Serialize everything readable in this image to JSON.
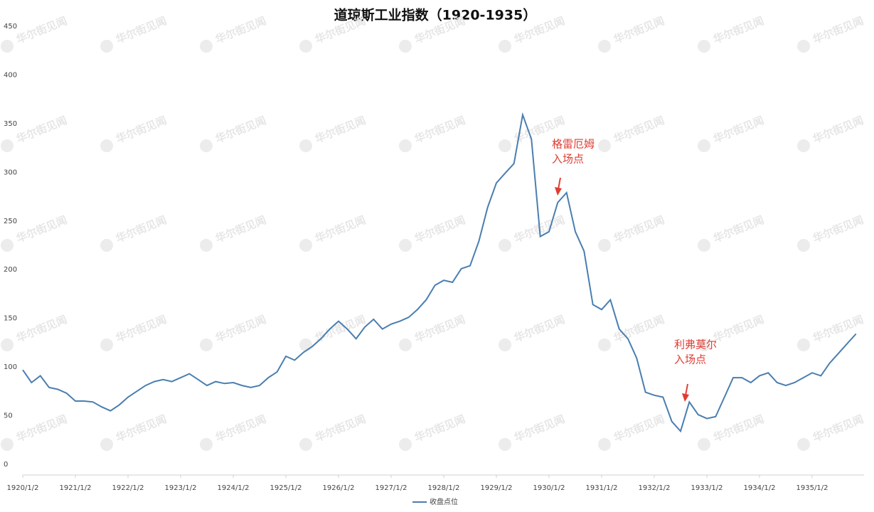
{
  "chart_data": {
    "type": "line",
    "title": "道琼斯工业指数（1920-1935）",
    "categories": [
      "1920/1/2",
      null,
      null,
      null,
      null,
      null,
      "1921/1/2",
      null,
      null,
      null,
      null,
      null,
      "1922/1/2",
      null,
      null,
      null,
      null,
      null,
      "1923/1/2",
      null,
      null,
      null,
      null,
      null,
      "1924/1/2",
      null,
      null,
      null,
      null,
      null,
      "1925/1/2",
      null,
      null,
      null,
      null,
      null,
      "1926/1/2",
      null,
      null,
      null,
      null,
      null,
      "1927/1/2",
      null,
      null,
      null,
      null,
      null,
      "1928/1/2",
      null,
      null,
      null,
      null,
      null,
      "1929/1/2",
      null,
      null,
      null,
      null,
      null,
      "1930/1/2",
      null,
      null,
      null,
      null,
      null,
      "1931/1/2",
      null,
      null,
      null,
      null,
      null,
      "1932/1/2",
      null,
      null,
      null,
      null,
      null,
      "1933/1/2",
      null,
      null,
      null,
      null,
      null,
      "1934/1/2",
      null,
      null,
      null,
      null,
      null,
      "1935/1/2",
      null,
      null,
      null,
      null,
      null
    ],
    "series": [
      {
        "name": "收盘点位",
        "color": "#4a7eb0",
        "values": [
          108,
          95,
          102,
          90,
          88,
          84,
          76,
          76,
          75,
          70,
          66,
          72,
          80,
          86,
          92,
          96,
          98,
          96,
          100,
          104,
          98,
          92,
          96,
          94,
          95,
          92,
          90,
          92,
          100,
          106,
          122,
          118,
          126,
          132,
          140,
          150,
          158,
          150,
          140,
          152,
          160,
          150,
          155,
          158,
          162,
          170,
          180,
          195,
          200,
          198,
          212,
          215,
          240,
          275,
          300,
          310,
          320,
          370,
          345,
          245,
          250,
          280,
          290,
          250,
          230,
          175,
          170,
          180,
          150,
          140,
          120,
          85,
          82,
          80,
          55,
          45,
          75,
          62,
          58,
          60,
          80,
          100,
          100,
          95,
          102,
          105,
          95,
          92,
          95,
          100,
          105,
          102,
          115,
          125,
          135,
          145
        ]
      }
    ],
    "ylim": [
      0,
      450
    ],
    "yticks": [
      0,
      50,
      100,
      150,
      200,
      250,
      300,
      350,
      400,
      450
    ],
    "annotations": [
      [
        "格雷厄姆",
        "入场点"
      ],
      [
        "利弗莫尔",
        "入场点"
      ]
    ],
    "watermark": "华尔街见闻",
    "legend": "bottom"
  }
}
